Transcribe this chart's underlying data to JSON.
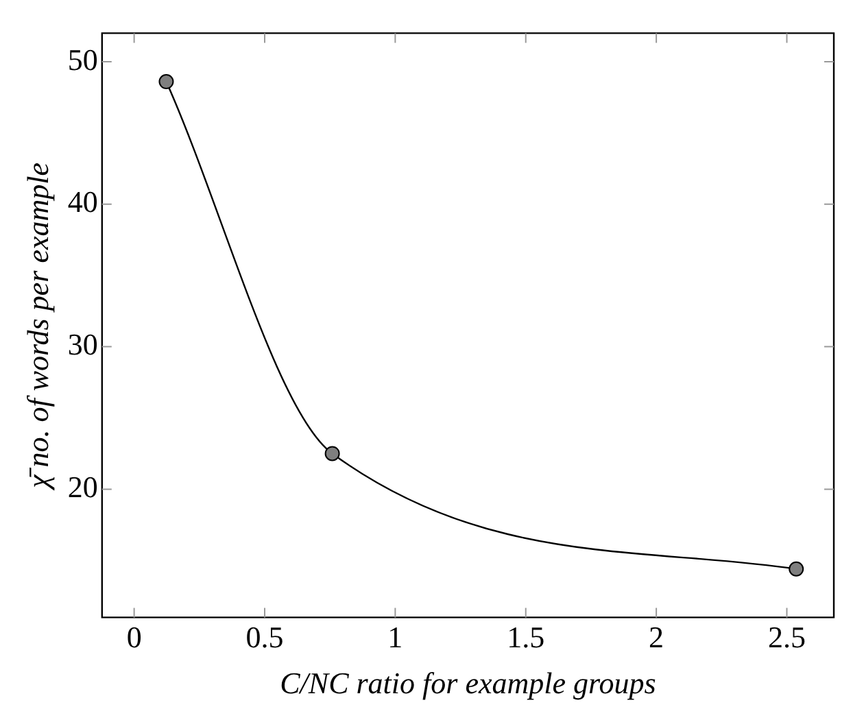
{
  "chart_data": {
    "type": "line",
    "xlabel": "C/NC ratio for example groups",
    "ylabel": "χ̄ no. of words per example",
    "x": [
      0.123,
      0.759,
      2.536
    ],
    "series": [
      {
        "color": "#000000",
        "values": [
          48.6,
          22.5,
          14.4
        ]
      }
    ],
    "xlim": [
      -0.123,
      2.68
    ],
    "xticks": [
      0,
      0.5,
      1,
      1.5,
      2,
      2.5
    ],
    "ylim": [
      11,
      52
    ],
    "yticks": [
      20,
      30,
      40,
      50
    ],
    "grid": false,
    "legend": false,
    "marker": "circle",
    "line_style": "solid"
  }
}
